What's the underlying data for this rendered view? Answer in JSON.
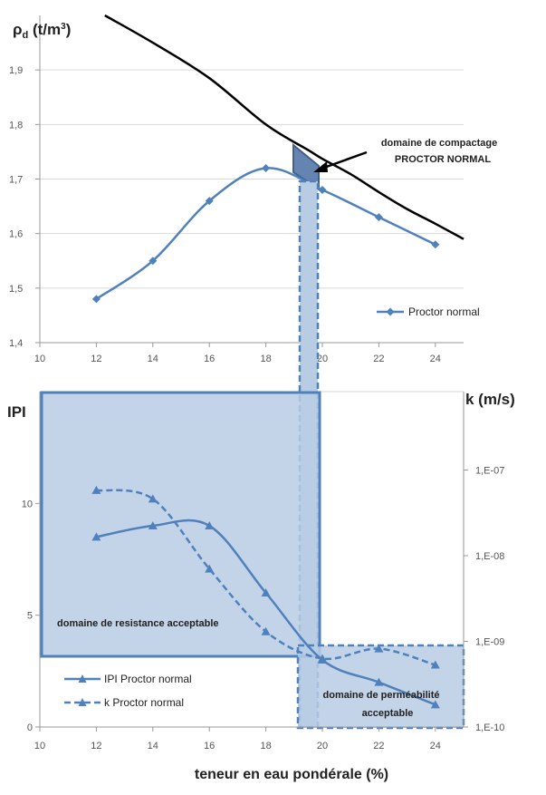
{
  "chart_data": [
    {
      "type": "line",
      "id": "top",
      "ylabel_main": "ρ",
      "ylabel_sub": "d",
      "ylabel_unit": " (t/m",
      "ylabel_exp": "3",
      "ylabel_close": ")",
      "x_ticks": [
        "10",
        "12",
        "14",
        "16",
        "18",
        "20",
        "22",
        "24"
      ],
      "y_ticks": [
        "1,4",
        "1,5",
        "1,6",
        "1,7",
        "1,8",
        "1,9"
      ],
      "xlim": [
        10,
        25
      ],
      "ylim": [
        1.4,
        2.0
      ],
      "series": [
        {
          "name": "Proctor normal",
          "x": [
            12,
            14,
            16,
            18,
            20,
            22,
            24
          ],
          "values": [
            1.48,
            1.55,
            1.66,
            1.72,
            1.68,
            1.63,
            1.58
          ]
        }
      ],
      "saturation_curve": {
        "x": [
          12.3,
          14,
          16,
          18,
          19.5,
          20,
          21,
          22,
          23,
          24,
          25
        ],
        "values": [
          2.0,
          1.95,
          1.885,
          1.8,
          1.753,
          1.737,
          1.709,
          1.676,
          1.645,
          1.618,
          1.59
        ]
      },
      "annotation": [
        "domaine de  compactage",
        "PROCTOR NORMAL"
      ],
      "legend": "Proctor normal"
    },
    {
      "type": "line",
      "id": "bottom",
      "ylabel_left": "IPI",
      "ylabel_right": "k (m/s)",
      "xlabel": "teneur en eau pondérale (%)",
      "x_ticks": [
        "10",
        "12",
        "14",
        "16",
        "18",
        "20",
        "22",
        "24"
      ],
      "y_ticks_left": [
        "0",
        "5",
        "10"
      ],
      "y_ticks_right": [
        "1,E-10",
        "1,E-09",
        "1,E-08",
        "1,E-07"
      ],
      "xlim": [
        10,
        25
      ],
      "ylim_left": [
        0,
        15
      ],
      "series": [
        {
          "name": "IPI Proctor normal",
          "axis": "left",
          "x": [
            12,
            14,
            16,
            18,
            20,
            22,
            24
          ],
          "values": [
            8.5,
            9.0,
            9.0,
            6.0,
            3.0,
            2.0,
            1.0
          ]
        },
        {
          "name": "k Proctor normal",
          "axis": "right",
          "x": [
            12,
            14,
            16,
            18,
            20,
            22,
            24
          ],
          "values": [
            5.8e-08,
            4.6e-08,
            7e-09,
            1.3e-09,
            6.3e-10,
            8.2e-10,
            5.3e-10
          ]
        }
      ],
      "annotations": {
        "resistance": "domaine de resistance acceptable",
        "permeability": [
          "domaine de perméabilité",
          "acceptable"
        ]
      },
      "legend": [
        "IPI Proctor normal",
        "k Proctor normal"
      ]
    }
  ]
}
